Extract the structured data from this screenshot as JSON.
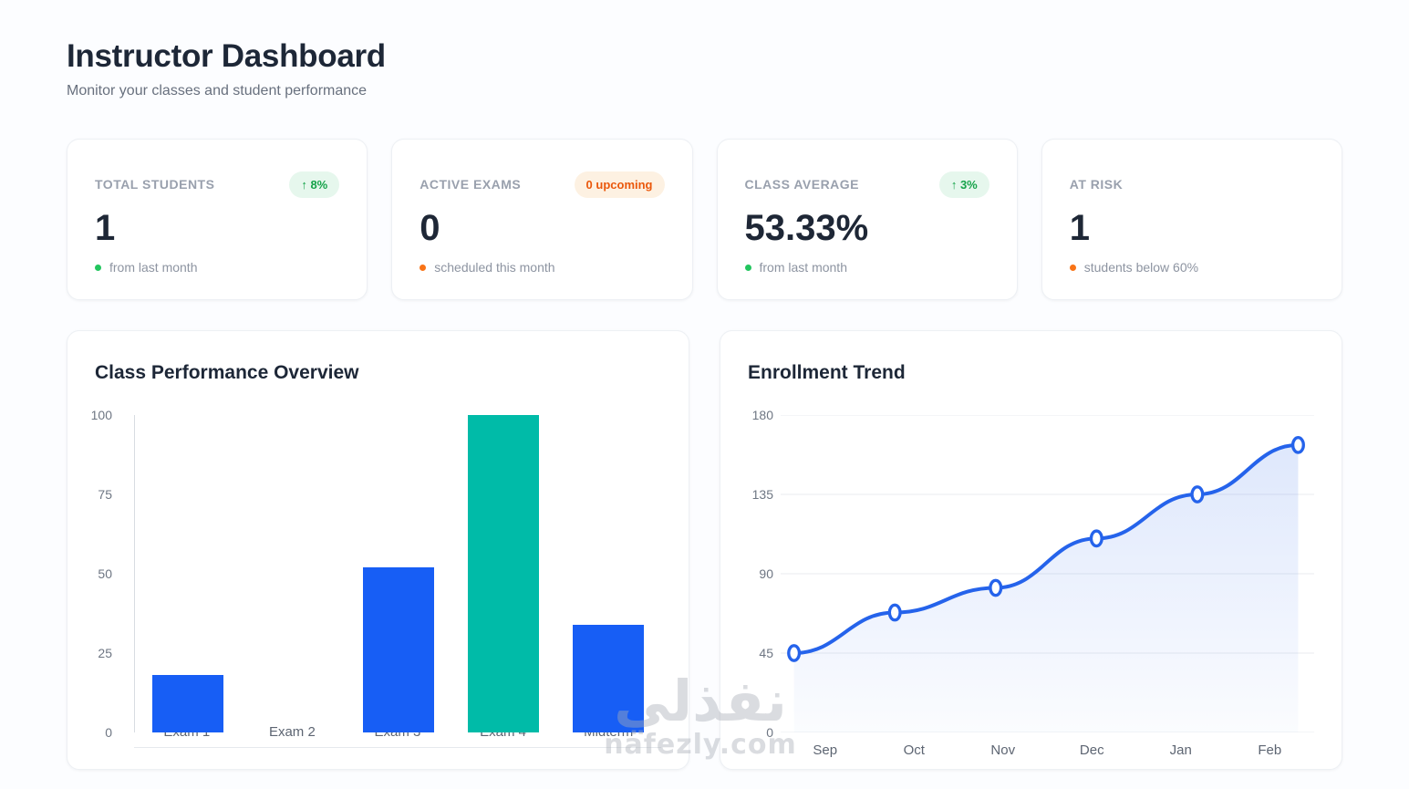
{
  "header": {
    "title": "Instructor Dashboard",
    "subtitle": "Monitor your classes and student performance"
  },
  "stats": {
    "cards": [
      {
        "label": "TOTAL STUDENTS",
        "value": "1",
        "badge": "↑ 8%",
        "badge_style": "green",
        "footnote": "from last month",
        "dot_color": "#22c55e"
      },
      {
        "label": "ACTIVE EXAMS",
        "value": "0",
        "badge": "0 upcoming",
        "badge_style": "orange",
        "footnote": "scheduled this month",
        "dot_color": "#f97316"
      },
      {
        "label": "CLASS AVERAGE",
        "value": "53.33%",
        "badge": "↑ 3%",
        "badge_style": "green",
        "footnote": "from last month",
        "dot_color": "#22c55e"
      },
      {
        "label": "AT RISK",
        "value": "1",
        "badge": null,
        "badge_style": null,
        "footnote": "students below 60%",
        "dot_color": "#f97316"
      }
    ]
  },
  "chart_data": [
    {
      "type": "bar",
      "title": "Class Performance Overview",
      "categories": [
        "Exam 1",
        "Exam 2",
        "Exam 3",
        "Exam 4",
        "Midterm"
      ],
      "values": [
        18,
        0,
        52,
        100,
        34
      ],
      "yticks": [
        100,
        75,
        50,
        25,
        0
      ],
      "ylim": [
        0,
        100
      ],
      "xlabel": "",
      "ylabel": "",
      "grid": false,
      "legend": false,
      "bar_colors": [
        "#175ef5",
        "#175ef5",
        "#175ef5",
        "#00bba8",
        "#175ef5"
      ]
    },
    {
      "type": "line",
      "title": "Enrollment Trend",
      "categories": [
        "Sep",
        "Oct",
        "Nov",
        "Dec",
        "Jan",
        "Feb"
      ],
      "values": [
        45,
        68,
        82,
        110,
        135,
        163
      ],
      "yticks": [
        180,
        135,
        90,
        45,
        0
      ],
      "ylim": [
        0,
        180
      ],
      "xlabel": "",
      "ylabel": "",
      "grid": true,
      "legend": false,
      "line_color": "#2563eb",
      "marker": "open-circle",
      "area_fill": "blue-gradient"
    }
  ],
  "watermark": {
    "line1": "نفذلي",
    "line2": "nafezly.com"
  },
  "colors": {
    "accent_blue": "#175ef5",
    "teal": "#00bba8",
    "green": "#16a34a",
    "green_badge_bg": "#e6f7ed",
    "orange": "#ea580c",
    "orange_badge_bg": "#fdf1e2",
    "green_dot": "#22c55e",
    "orange_dot": "#f97316",
    "heading": "#1d2737",
    "muted_text": "#8d94a1",
    "grid_line": "#e9ebef"
  }
}
